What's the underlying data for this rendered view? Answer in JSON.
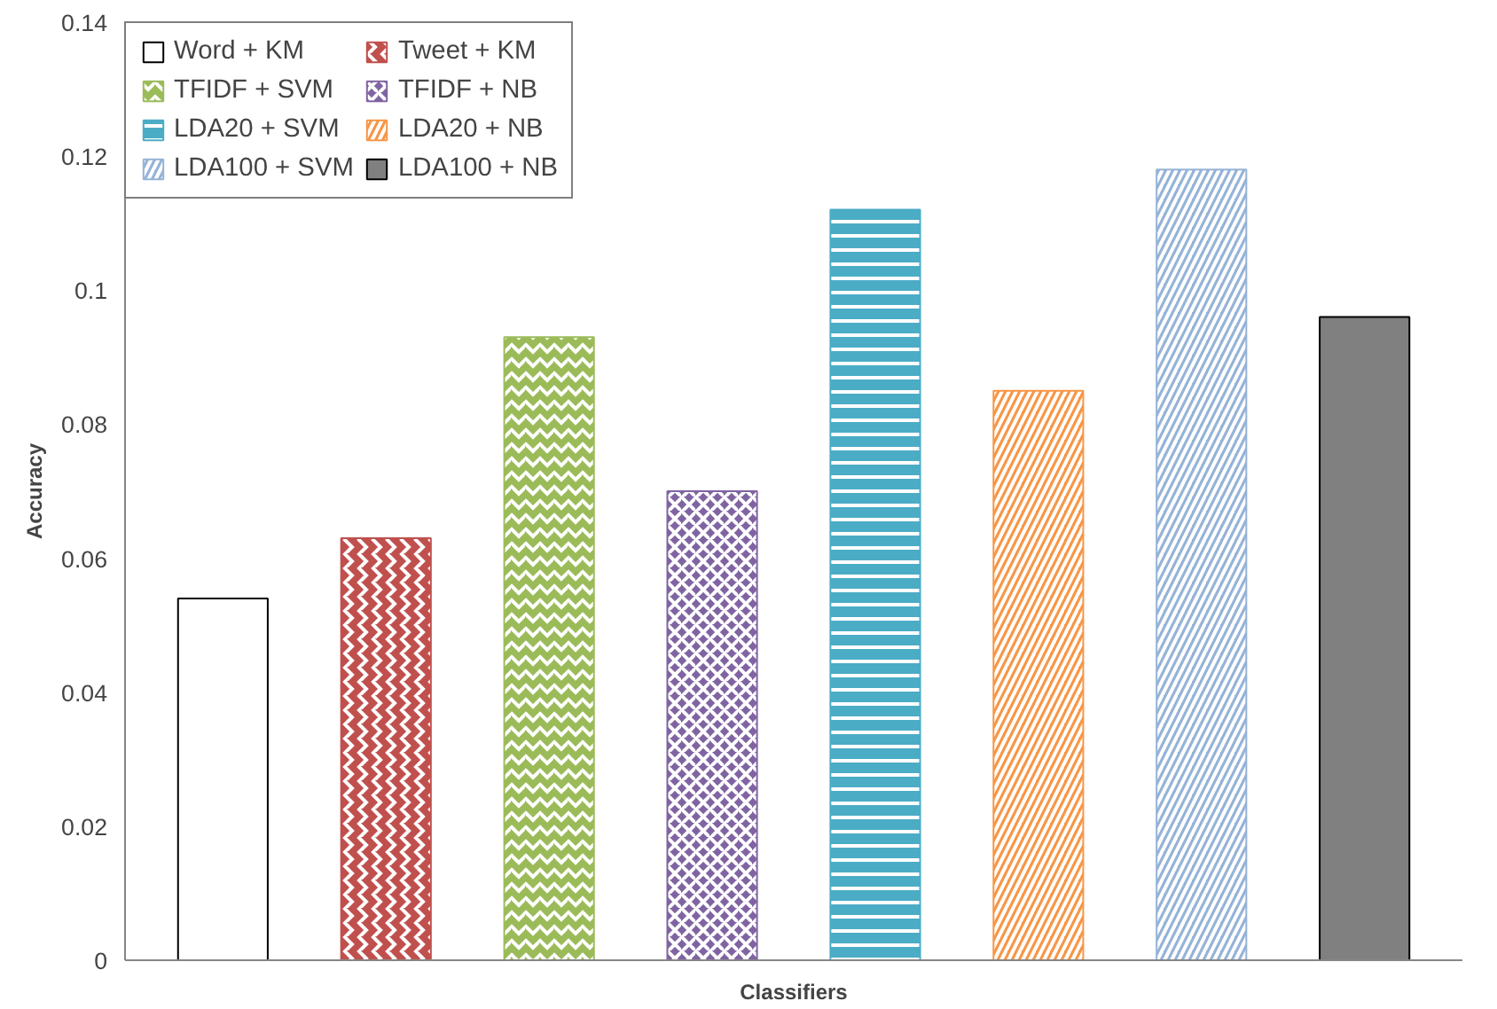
{
  "chart_data": {
    "type": "bar",
    "xlabel": "Classifiers",
    "ylabel": "Accuracy",
    "categories": [
      null,
      null,
      null,
      null,
      null,
      null,
      null,
      null
    ],
    "series": [
      {
        "name": "Word + KM",
        "color": "#ffffff",
        "values": [
          0.054,
          null,
          null,
          null,
          null,
          null,
          null,
          null
        ]
      },
      {
        "name": "Tweet + KM",
        "color": "#c0504d",
        "values": [
          null,
          0.063,
          null,
          null,
          null,
          null,
          null,
          null
        ]
      },
      {
        "name": "TFIDF + SVM",
        "color": "#9bbb59",
        "values": [
          null,
          null,
          0.093,
          null,
          null,
          null,
          null,
          null
        ]
      },
      {
        "name": "TFIDF + NB",
        "color": "#8064a2",
        "values": [
          null,
          null,
          null,
          0.07,
          null,
          null,
          null,
          null
        ]
      },
      {
        "name": "LDA20 + SVM",
        "color": "#4bacc6",
        "values": [
          null,
          null,
          null,
          null,
          0.112,
          null,
          null,
          null
        ]
      },
      {
        "name": "LDA20 + NB",
        "color": "#f79646",
        "values": [
          null,
          null,
          null,
          null,
          null,
          0.085,
          null,
          null
        ]
      },
      {
        "name": "LDA100 + SVM",
        "color": "#95b3d7",
        "values": [
          null,
          null,
          null,
          null,
          null,
          null,
          0.118,
          null
        ]
      },
      {
        "name": "LDA100 + NB",
        "color": "#808080",
        "values": [
          null,
          null,
          null,
          null,
          null,
          null,
          null,
          0.096
        ]
      }
    ],
    "ylim": [
      0,
      0.14
    ],
    "yticks": [
      0,
      0.02,
      0.04,
      0.06,
      0.08,
      0.1,
      0.12,
      0.14
    ],
    "grid": false,
    "legend": "top left"
  }
}
